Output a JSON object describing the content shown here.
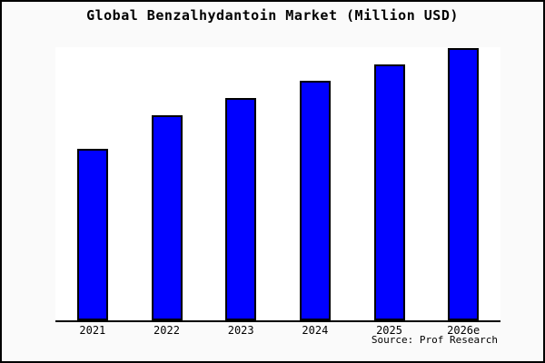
{
  "chart_data": {
    "type": "bar",
    "title": "Global Benzalhydantoin Market (Million USD)",
    "categories": [
      "2021",
      "2022",
      "2023",
      "2024",
      "2025",
      "2026e"
    ],
    "values": [
      63,
      75.3,
      81.7,
      88,
      94,
      100
    ],
    "xlabel": "",
    "ylabel": "",
    "ylim": [
      0,
      100
    ],
    "grid": false,
    "legend": "none",
    "y_axis_ticks_visible": false,
    "note": "values estimated from bar heights as percent of tallest bar (no y-axis labels shown)",
    "colors": {
      "bar_fill": "#0000ff",
      "bar_border": "#000000",
      "axis": "#000000",
      "plot_background": "#ffffff",
      "figure_background": "#fafafa"
    }
  },
  "source": {
    "label": "Source: Prof Research"
  }
}
